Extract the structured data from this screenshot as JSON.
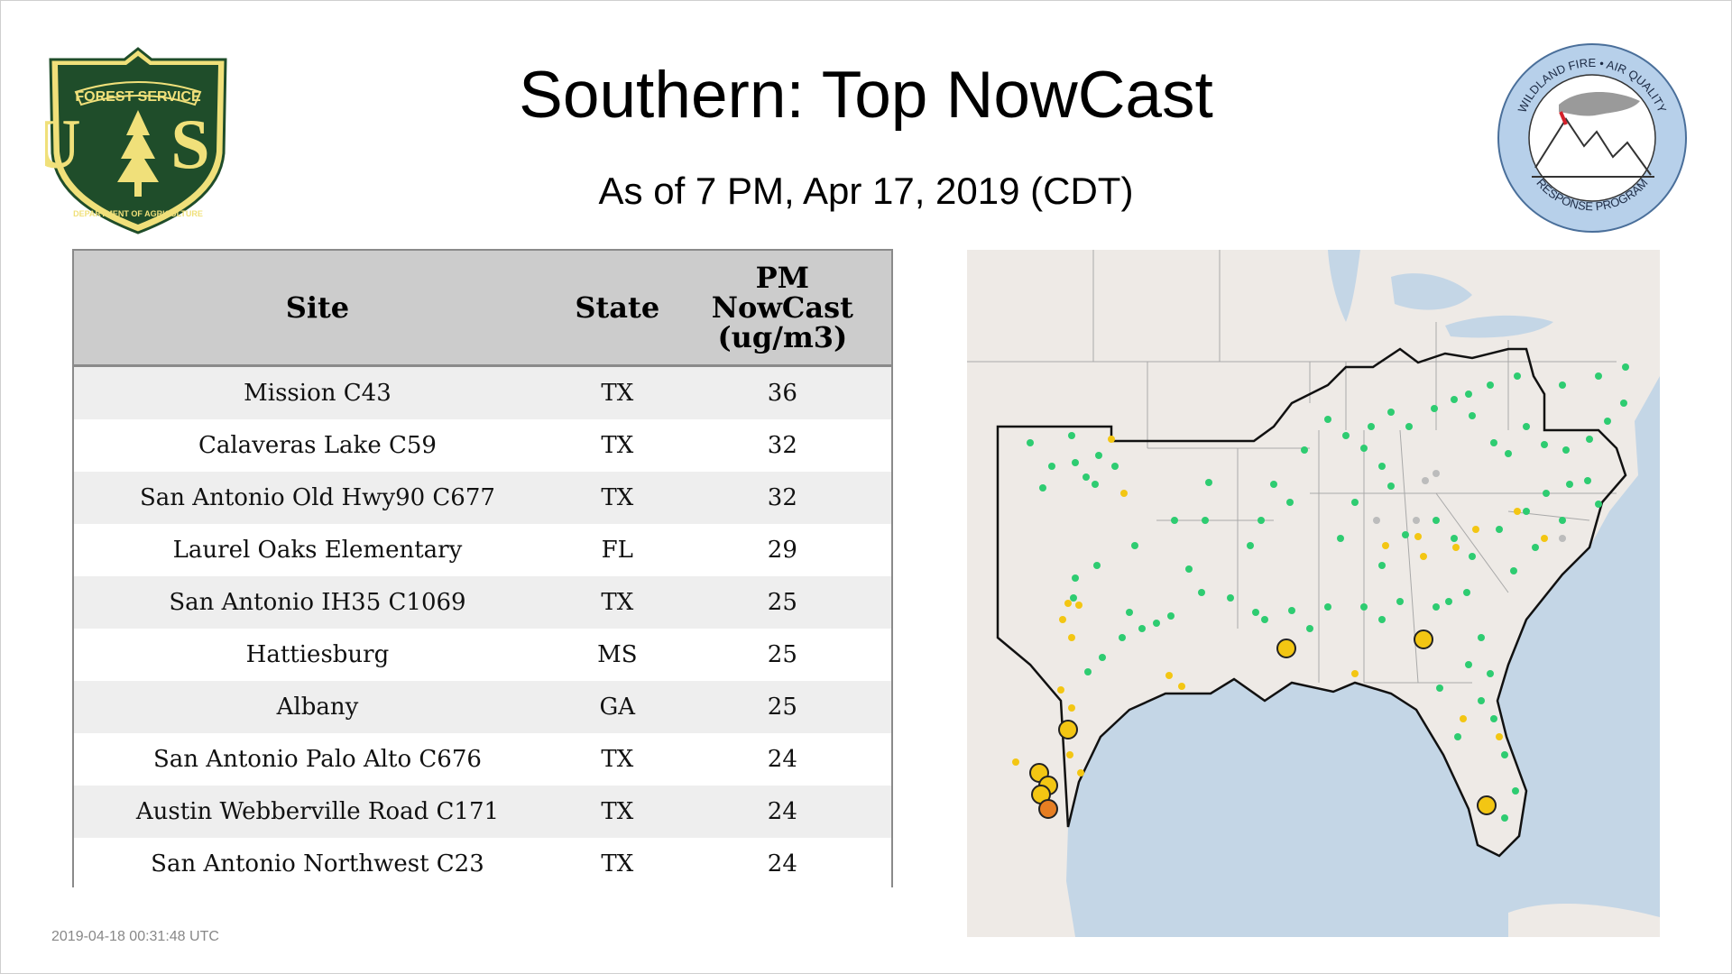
{
  "header": {
    "title": "Southern: Top NowCast",
    "subtitle": "As of  7 PM, Apr 17, 2019 (CDT)"
  },
  "logos": {
    "forest_service": {
      "top_text": "FOREST SERVICE",
      "letters": "U S",
      "bottom_text": "DEPARTMENT OF AGRICULTURE",
      "colors": {
        "green": "#1f4d2a",
        "gold": "#f0e07a"
      }
    },
    "wildland_fire": {
      "top_text": "WILDLAND FIRE • AIR QUALITY",
      "bottom_text": "RESPONSE PROGRAM",
      "colors": {
        "ring": "#b7d0ea",
        "accent": "#d4202a"
      }
    }
  },
  "table": {
    "columns": [
      "Site",
      "State",
      "PM NowCast (ug/m3)"
    ],
    "header_lines": {
      "pm": "PM",
      "nowcast": "NowCast",
      "unit": "(ug/m3)"
    },
    "rows": [
      {
        "site": "Mission C43",
        "state": "TX",
        "value": "36"
      },
      {
        "site": "Calaveras Lake C59",
        "state": "TX",
        "value": "32"
      },
      {
        "site": "San Antonio Old Hwy90 C677",
        "state": "TX",
        "value": "32"
      },
      {
        "site": "Laurel Oaks Elementary",
        "state": "FL",
        "value": "29"
      },
      {
        "site": "San Antonio IH35 C1069",
        "state": "TX",
        "value": "25"
      },
      {
        "site": "Hattiesburg",
        "state": "MS",
        "value": "25"
      },
      {
        "site": "Albany",
        "state": "GA",
        "value": "25"
      },
      {
        "site": "San Antonio Palo Alto C676",
        "state": "TX",
        "value": "24"
      },
      {
        "site": "Austin Webberville Road C171",
        "state": "TX",
        "value": "24"
      },
      {
        "site": "San Antonio Northwest C23",
        "state": "TX",
        "value": "24"
      }
    ]
  },
  "map": {
    "colors": {
      "land": "#eeeae6",
      "water": "#c4d6e6",
      "boundary": "#111111",
      "good": "#2ecc71",
      "moderate": "#f3c613",
      "usg": "#e67e22",
      "no_data": "#bcbcbc"
    }
  },
  "footer": {
    "timestamp": "2019-04-18 00:31:48 UTC"
  }
}
